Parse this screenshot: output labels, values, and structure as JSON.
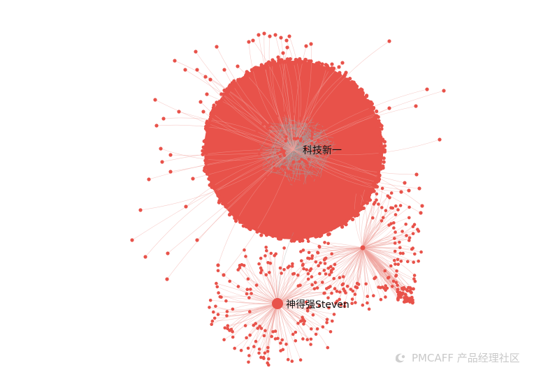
{
  "network": {
    "node_color": "#e8524a",
    "edge_color": "#f0a29c",
    "core_color": "#a0a0a0",
    "hubs": [
      {
        "id": "main",
        "label": "科技新一"
      },
      {
        "id": "steven",
        "label": "神得强Steven"
      },
      {
        "id": "secondary",
        "label": ""
      }
    ]
  },
  "watermark": {
    "text": "PMCAFF 产品经理社区",
    "icon": "pmcaff-logo-icon"
  }
}
